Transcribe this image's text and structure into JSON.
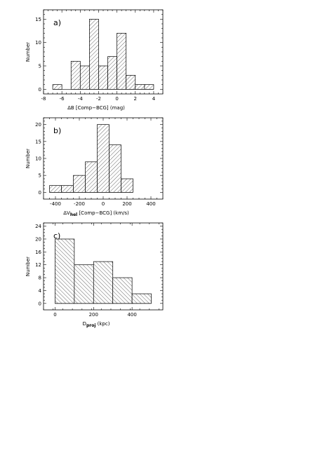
{
  "chart_data": [
    {
      "type": "bar",
      "panel_label": "a)",
      "xlabel": "ΔB [Comp−BCG] (mag)",
      "xlabel_parts": {
        "pre": "ΔB [Comp−BCG] (mag)",
        "sub": "",
        "post": ""
      },
      "ylabel": "Number",
      "xlim": [
        -8,
        5
      ],
      "ylim": [
        -1,
        17
      ],
      "xticks": [
        -8,
        -6,
        -4,
        -2,
        0,
        2,
        4
      ],
      "yticks": [
        0,
        5,
        10,
        15
      ],
      "bin_edges": [
        -7,
        -6,
        -5,
        -4,
        -3,
        -2,
        -1,
        0,
        1,
        2,
        3,
        4
      ],
      "values": [
        1,
        0,
        6,
        5,
        15,
        5,
        7,
        12,
        3,
        1,
        1
      ],
      "hatch": "diag-right"
    },
    {
      "type": "bar",
      "panel_label": "b)",
      "xlabel": "ΔV_hel [Comp−BCG] (km/s)",
      "xlabel_parts": {
        "pre": "ΔV",
        "sub": "hel",
        "post": " [Comp−BCG] (km/s)"
      },
      "ylabel": "Number",
      "xlim": [
        -500,
        500
      ],
      "ylim": [
        -2,
        22
      ],
      "xticks": [
        -400,
        -200,
        0,
        200,
        400
      ],
      "yticks": [
        0,
        5,
        10,
        15,
        20
      ],
      "bin_edges": [
        -450,
        -350,
        -250,
        -150,
        -50,
        50,
        150,
        250
      ],
      "values": [
        2,
        2,
        5,
        9,
        20,
        14,
        4
      ],
      "hatch": "diag-right"
    },
    {
      "type": "bar",
      "panel_label": "c)",
      "xlabel": "D_proj (kpc)",
      "xlabel_parts": {
        "pre": "D",
        "sub": "proj",
        "post": " (kpc)"
      },
      "ylabel": "Number",
      "xlim": [
        -60,
        560
      ],
      "ylim": [
        -2,
        25
      ],
      "xticks": [
        0,
        200,
        400
      ],
      "yticks": [
        0,
        4,
        8,
        12,
        16,
        20,
        24
      ],
      "bin_edges": [
        0,
        100,
        200,
        300,
        400,
        500
      ],
      "values": [
        20,
        12,
        13,
        8,
        3
      ],
      "hatch": "diag-left"
    }
  ]
}
